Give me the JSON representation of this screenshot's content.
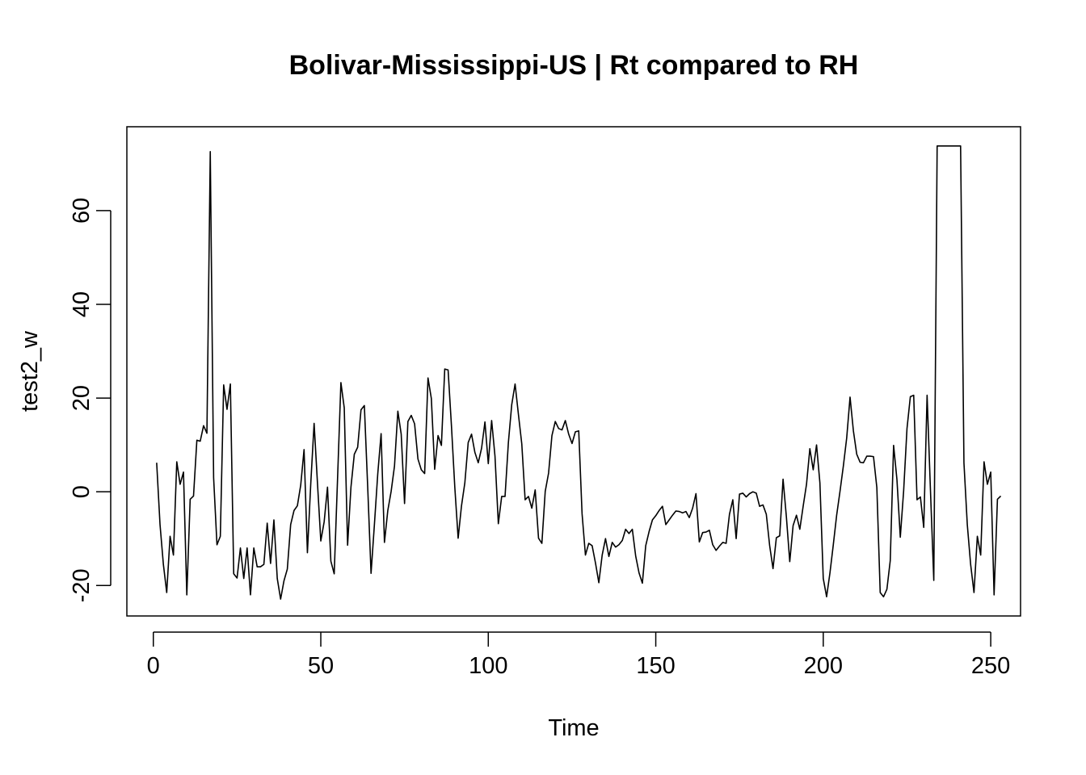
{
  "chart_data": {
    "type": "line",
    "title": "Bolivar-Mississippi-US | Rt compared to RH",
    "xlabel": "Time",
    "ylabel": "test2_w",
    "xlim": [
      -7.9,
      258.9
    ],
    "ylim": [
      -26.5,
      77.9
    ],
    "x_ticks": [
      0,
      50,
      100,
      150,
      200,
      250
    ],
    "y_ticks": [
      -20,
      0,
      20,
      40,
      60
    ],
    "box": true,
    "grid": false,
    "line_color": "#000000",
    "series": [
      {
        "x_start": 1,
        "values": [
          6.2,
          -7,
          -15.5,
          -21.5,
          -9.5,
          -13.5,
          6.4,
          1.6,
          4.2,
          -22,
          -1.6,
          -0.9,
          11,
          10.8,
          14.1,
          12.5,
          72.6,
          3,
          -11.3,
          -9.5,
          22.8,
          17.6,
          23,
          -17.5,
          -18.4,
          -12,
          -18.5,
          -12,
          -22,
          -12,
          -16,
          -16,
          -15.5,
          -6.7,
          -15.3,
          -6,
          -18.5,
          -22.9,
          -19,
          -16.5,
          -7,
          -4,
          -3,
          1.4,
          9,
          -13,
          1.7,
          14.6,
          1.9,
          -10.5,
          -6.4,
          1,
          -14.8,
          -17.5,
          2.8,
          23.3,
          17.9,
          -11.4,
          1,
          8,
          9.5,
          17.5,
          18.4,
          1,
          -17.4,
          -7,
          3.8,
          12.4,
          -10.8,
          -4,
          0.1,
          5.5,
          17.2,
          12.3,
          -2.5,
          15,
          16.3,
          14.5,
          7,
          4.7,
          3.9,
          24.3,
          19.9,
          4.8,
          12,
          9.9,
          26.2,
          26,
          14.1,
          1,
          -9.9,
          -3,
          1.9,
          10.5,
          12.3,
          8.4,
          6.2,
          9.3,
          14.9,
          6,
          15.2,
          7.6,
          -6.8,
          -1,
          -1,
          10.5,
          18.6,
          23,
          16.5,
          10.2,
          -1.7,
          -1,
          -3.5,
          0.4,
          -9.9,
          -11,
          0.1,
          4,
          12,
          15,
          13.5,
          13.2,
          15.2,
          12.3,
          10.3,
          12.8,
          13,
          -4.7,
          -13.5,
          -11,
          -11.5,
          -15.2,
          -19.4,
          -13.5,
          -10,
          -13.8,
          -10.8,
          -11.8,
          -11.3,
          -10.4,
          -8,
          -8.9,
          -8,
          -13.7,
          -17.3,
          -19.5,
          -11.5,
          -8.5,
          -6,
          -5.1,
          -4,
          -3.1,
          -7,
          -6,
          -5,
          -4.1,
          -4.2,
          -4.5,
          -4.2,
          -5.5,
          -3.5,
          -0.4,
          -10.7,
          -8.7,
          -8.6,
          -8.2,
          -11.3,
          -12.5,
          -11.6,
          -10.8,
          -11,
          -4.8,
          -1.7,
          -10,
          -0.5,
          -0.3,
          -1.1,
          -0.4,
          0,
          -0.3,
          -3.1,
          -2.8,
          -4.8,
          -11.5,
          -16.4,
          -9.8,
          -9.4,
          2.7,
          -5.4,
          -14.9,
          -7.2,
          -5,
          -8,
          -3.1,
          1.6,
          9.2,
          4.7,
          10,
          1.9,
          -18.5,
          -22.4,
          -17.3,
          -11.3,
          -5,
          0.1,
          5.5,
          11.5,
          20.2,
          13,
          8,
          6.3,
          6.2,
          7.6,
          7.6,
          7.5,
          0.9,
          -21.5,
          -22.4,
          -20.8,
          -14.7,
          9.9,
          2.6,
          -9.7,
          0.2,
          13.5,
          20.3,
          20.6,
          -1.7,
          -1.1,
          -7.6,
          20.6,
          0.4,
          -18.9,
          73.8,
          73.8,
          73.8,
          73.8,
          73.8,
          73.8,
          73.8,
          73.8,
          6.2,
          -7,
          -15.5,
          -21.5,
          -9.5,
          -13.5,
          6.4,
          1.6,
          4.2,
          -22,
          -1.6,
          -0.9
        ]
      }
    ]
  }
}
